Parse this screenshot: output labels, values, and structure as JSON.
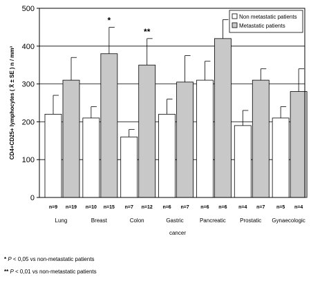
{
  "chart_data": {
    "type": "bar",
    "ylabel": "CD4+CD25+ lymphocytes ( X̄ ± SE )   n / mm³",
    "xlabel": "cancer",
    "ylim": [
      0,
      500
    ],
    "yticks": [
      0,
      100,
      200,
      300,
      400,
      500
    ],
    "grid": "horizontal",
    "legend_position": "top-right",
    "categories": [
      "Lung",
      "Breast",
      "Colon",
      "Gastric",
      "Pancreatic",
      "Prostatic",
      "Gynaecologic"
    ],
    "series": [
      {
        "name": "Non metastatic patients",
        "color": "#ffffff",
        "values": [
          220,
          210,
          160,
          220,
          310,
          190,
          210
        ],
        "errors": [
          50,
          30,
          20,
          40,
          50,
          40,
          30
        ],
        "n_labels": [
          "n=9",
          "n=10",
          "n=7",
          "n=6",
          "n=6",
          "n=4",
          "n=5"
        ]
      },
      {
        "name": "Metastatic patients",
        "color": "#c8c8c8",
        "values": [
          310,
          380,
          350,
          305,
          420,
          310,
          280
        ],
        "errors": [
          60,
          70,
          70,
          70,
          50,
          30,
          60
        ],
        "n_labels": [
          "n=19",
          "n=15",
          "n=12",
          "n=7",
          "n=6",
          "n=7",
          "n=4"
        ]
      }
    ],
    "significance": [
      {
        "category": "Breast",
        "mark": "*"
      },
      {
        "category": "Colon",
        "mark": "**"
      }
    ]
  },
  "footnotes": [
    {
      "mark": "*",
      "p": "P",
      "text": " < 0,05 vs non-metastatic patients"
    },
    {
      "mark": "**",
      "p": "P",
      "text": " < 0,01 vs non-metastatic patients"
    }
  ]
}
